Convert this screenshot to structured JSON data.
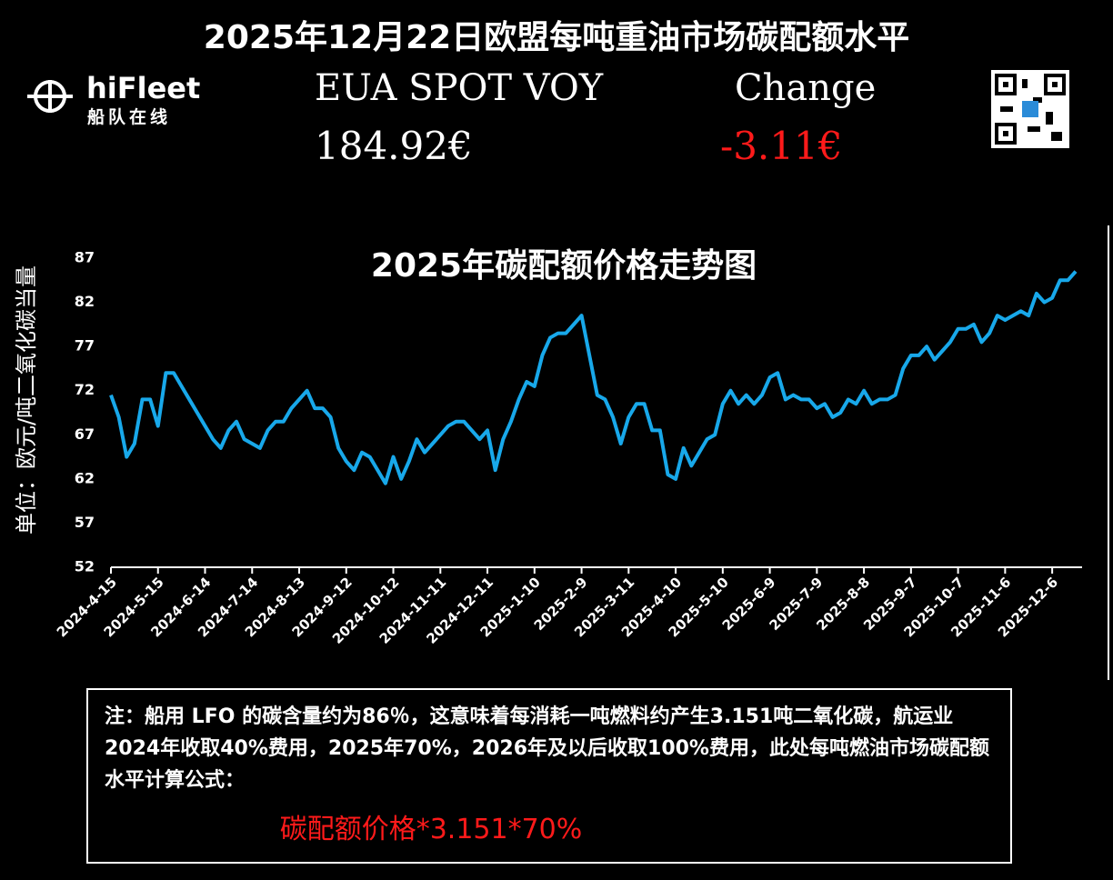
{
  "header": {
    "title": "2025年12月22日欧盟每吨重油市场碳配额水平",
    "logo_name": "hiFleet",
    "logo_subtitle": "船队在线",
    "price_label": "EUA SPOT VOY",
    "price_value": "184.92€",
    "change_label": "Change",
    "change_value": "-3.11€"
  },
  "chart_data": {
    "type": "line",
    "title": "2025年碳配额价格走势图",
    "y_label": "单位：欧元/吨二氧化碳当量",
    "categories": [
      "2024-4-15",
      null,
      null,
      null,
      null,
      null,
      "2024-5-15",
      null,
      null,
      null,
      null,
      null,
      "2024-6-14",
      null,
      null,
      null,
      null,
      null,
      "2024-7-14",
      null,
      null,
      null,
      null,
      null,
      "2024-8-13",
      null,
      null,
      null,
      null,
      null,
      "2024-9-12",
      null,
      null,
      null,
      null,
      null,
      "2024-10-12",
      null,
      null,
      null,
      null,
      null,
      "2024-11-11",
      null,
      null,
      null,
      null,
      null,
      "2024-12-11",
      null,
      null,
      null,
      null,
      null,
      "2025-1-10",
      null,
      null,
      null,
      null,
      null,
      "2025-2-9",
      null,
      null,
      null,
      null,
      null,
      "2025-3-11",
      null,
      null,
      null,
      null,
      null,
      "2025-4-10",
      null,
      null,
      null,
      null,
      null,
      "2025-5-10",
      null,
      null,
      null,
      null,
      null,
      "2025-6-9",
      null,
      null,
      null,
      null,
      null,
      "2025-7-9",
      null,
      null,
      null,
      null,
      null,
      "2025-8-8",
      null,
      null,
      null,
      null,
      null,
      "2025-9-7",
      null,
      null,
      null,
      null,
      null,
      "2025-10-7",
      null,
      null,
      null,
      null,
      null,
      "2025-11-6",
      null,
      null,
      null,
      null,
      null,
      "2025-12-6",
      null,
      null,
      null
    ],
    "series": [
      {
        "name": "EUA",
        "color": "#18a8ea",
        "values": [
          71.5,
          69,
          64.5,
          66,
          71,
          71,
          68,
          74,
          74,
          72.5,
          71,
          69.5,
          68,
          66.5,
          65.5,
          67.5,
          68.5,
          66.5,
          66,
          65.5,
          67.5,
          68.5,
          68.5,
          70,
          71,
          72,
          70,
          70,
          69,
          65.5,
          64,
          63,
          65,
          64.5,
          63,
          61.5,
          64.5,
          62,
          64,
          66.5,
          65,
          66,
          67,
          68,
          68.5,
          68.5,
          67.5,
          66.5,
          67.5,
          63,
          66.5,
          68.5,
          71,
          73,
          72.5,
          76,
          78,
          78.5,
          78.5,
          79.5,
          80.5,
          76,
          71.5,
          71,
          69,
          66,
          69,
          70.5,
          70.5,
          67.5,
          67.5,
          62.5,
          62,
          65.5,
          63.5,
          65,
          66.5,
          67,
          70.5,
          72,
          70.5,
          71.5,
          70.5,
          71.5,
          73.5,
          74,
          71,
          71.5,
          71,
          71,
          70,
          70.5,
          69,
          69.5,
          71,
          70.5,
          72,
          70.5,
          71,
          71,
          71.5,
          74.5,
          76,
          76,
          77,
          75.5,
          76.5,
          77.5,
          79,
          79,
          79.5,
          77.5,
          78.5,
          80.5,
          80,
          80.5,
          81,
          80.5,
          83,
          82,
          82.5,
          84.5,
          84.5,
          85.5
        ]
      }
    ],
    "ylim": [
      52,
      87
    ],
    "yticks": [
      52,
      57,
      62,
      67,
      72,
      77,
      82,
      87
    ]
  },
  "note": {
    "text": "注：船用 LFO 的碳含量约为86％，这意味着每消耗一吨燃料约产生3.151吨二氧化碳，航运业2024年收取40%费用，2025年70%，2026年及以后收取100%费用，此处每吨燃油市场碳配额水平计算公式：",
    "formula": "碳配额价格*3.151*70%"
  }
}
